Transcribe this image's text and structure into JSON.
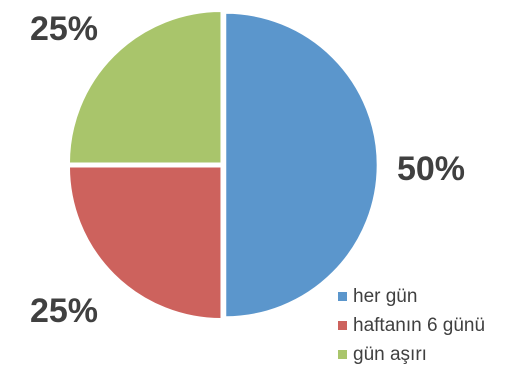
{
  "chart_data": {
    "type": "pie",
    "categories": [
      "her gün",
      "haftanın 6 günü",
      "gün aşırı"
    ],
    "values": [
      50,
      25,
      25
    ],
    "labels": [
      "50%",
      "25%",
      "25%"
    ],
    "colors": [
      "#5B96CC",
      "#CD625D",
      "#A9C56B"
    ],
    "start_angle_deg": 90,
    "direction": "clockwise",
    "legend_position": "bottom-right"
  }
}
